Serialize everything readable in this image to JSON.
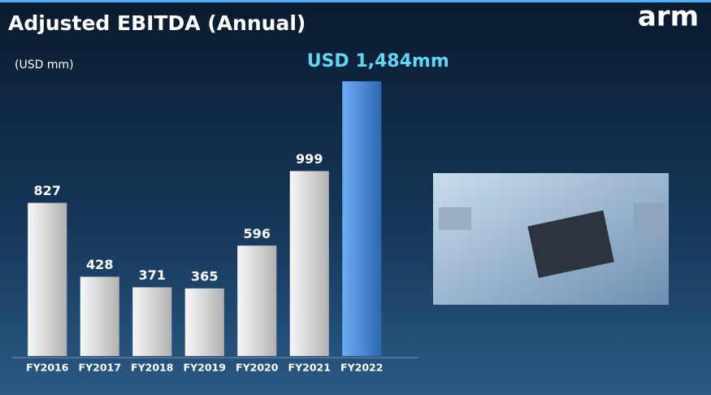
{
  "chart_data": {
    "type": "bar",
    "title": "Adjusted EBITDA (Annual)",
    "subtitle": "(USD mm)",
    "logo": "arm",
    "categories": [
      "FY2016",
      "FY2017",
      "FY2018",
      "FY2019",
      "FY2020",
      "FY2021",
      "FY2022"
    ],
    "values": [
      827,
      428,
      371,
      365,
      596,
      999,
      1484
    ],
    "value_labels": [
      "827",
      "428",
      "371",
      "365",
      "596",
      "999",
      "USD 1,484mm"
    ],
    "colors": [
      "#f4f4f6",
      "#f4f4f6",
      "#f4f4f6",
      "#f4f4f6",
      "#f4f4f6",
      "#f4f4f6",
      "#3d8ff2"
    ],
    "label_colors": [
      "#ffffff",
      "#ffffff",
      "#ffffff",
      "#ffffff",
      "#ffffff",
      "#ffffff",
      "#5fd6f4"
    ]
  }
}
